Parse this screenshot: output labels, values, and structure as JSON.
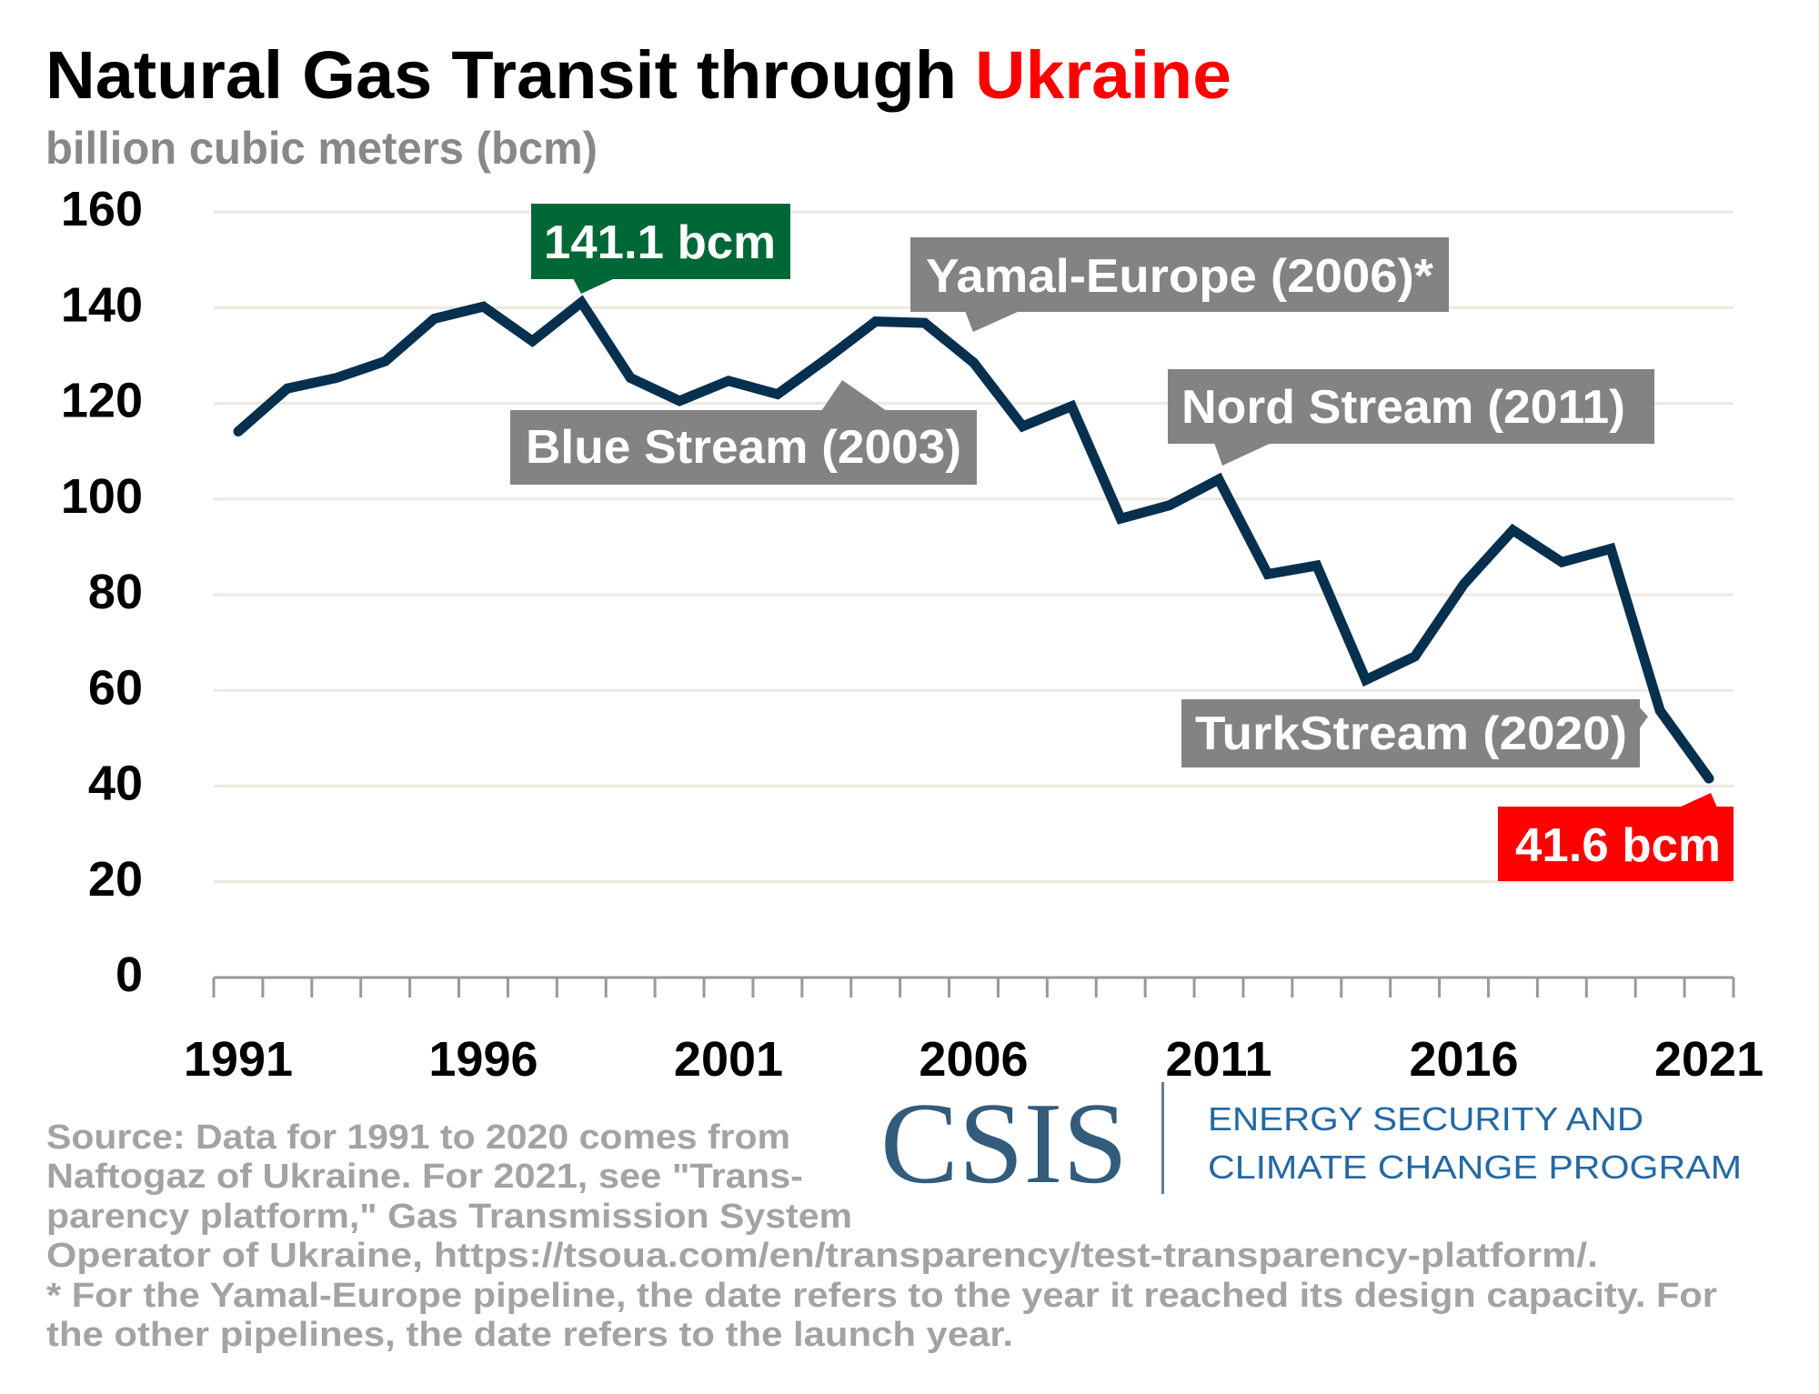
{
  "header": {
    "title_main": "Natural Gas Transit through ",
    "title_highlight": "Ukraine",
    "subtitle": "billion cubic meters (bcm)"
  },
  "colors": {
    "title": "#000000",
    "highlight": "#ff0000",
    "subtitle": "#888888",
    "line": "#07304f",
    "grid": "#ece9df",
    "axis": "#999999",
    "peak_label": "#006837",
    "end_label": "#ff0000",
    "pipeline_label": "#838383",
    "footer_text": "#a3a3a3",
    "logo": "#335b7b",
    "program": "#2369a4"
  },
  "chart_data": {
    "type": "line",
    "title": "Natural Gas Transit through Ukraine",
    "ylabel": "billion cubic meters (bcm)",
    "xlabel": "",
    "ylim": [
      0,
      160
    ],
    "yticks": [
      0,
      20,
      40,
      60,
      80,
      100,
      120,
      140,
      160
    ],
    "xtick_labels": [
      "1991",
      "1996",
      "2001",
      "2006",
      "2011",
      "2016",
      "2021"
    ],
    "grid": true,
    "x": [
      1991,
      1992,
      1993,
      1994,
      1995,
      1996,
      1997,
      1998,
      1999,
      2000,
      2001,
      2002,
      2003,
      2004,
      2005,
      2006,
      2007,
      2008,
      2009,
      2010,
      2011,
      2012,
      2013,
      2014,
      2015,
      2016,
      2017,
      2018,
      2019,
      2020,
      2021
    ],
    "series": [
      {
        "name": "Natural gas transit through Ukraine",
        "values": [
          114.1,
          123.1,
          125.3,
          128.8,
          137.7,
          140.2,
          133.0,
          141.1,
          125.3,
          120.5,
          124.7,
          121.9,
          129.3,
          137.1,
          136.8,
          128.5,
          115.2,
          119.4,
          95.9,
          98.7,
          104.1,
          84.3,
          86.1,
          62.2,
          67.1,
          82.2,
          93.5,
          86.8,
          89.6,
          55.8,
          41.6
        ]
      }
    ],
    "annotations": [
      {
        "text": "141.1 bcm",
        "year": 1998,
        "style": "peak"
      },
      {
        "text": "Yamal-Europe (2006)*",
        "year": 2006,
        "style": "pipeline"
      },
      {
        "text": "Blue Stream (2003)",
        "year": 2003,
        "style": "pipeline"
      },
      {
        "text": "Nord Stream (2011)",
        "year": 2011,
        "style": "pipeline"
      },
      {
        "text": "TurkStream (2020)",
        "year": 2020,
        "style": "pipeline"
      },
      {
        "text": "41.6 bcm",
        "year": 2021,
        "style": "end"
      }
    ]
  },
  "footer": {
    "source_lines": [
      "Source: Data for 1991 to 2020 comes from",
      "Naftogaz of Ukraine. For 2021, see \"Trans-",
      "parency platform,\" Gas Transmission System",
      "Operator of Ukraine, https://tsoua.com/en/transparency/test-transparency-platform/.",
      "* For the Yamal-Europe pipeline, the date refers to the year it reached its design capacity. For",
      "the other pipelines, the date refers to the launch year."
    ],
    "logo_text": "CSIS",
    "program_lines": [
      "ENERGY SECURITY AND",
      "CLIMATE CHANGE PROGRAM"
    ]
  }
}
